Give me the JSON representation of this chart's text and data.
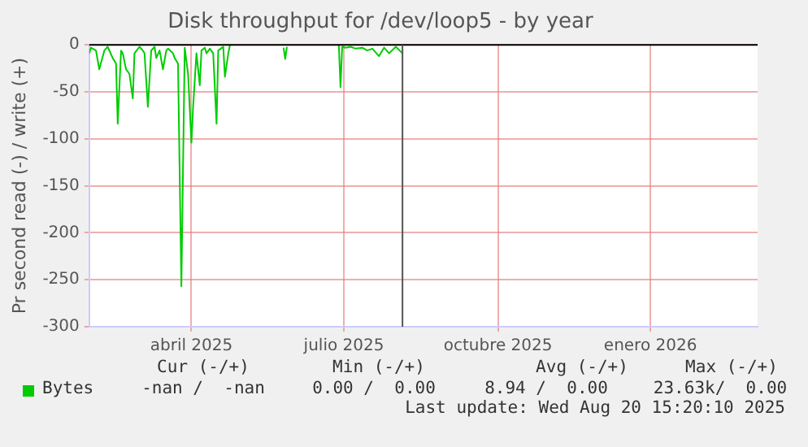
{
  "chart_data": {
    "type": "line",
    "title": "Disk throughput for /dev/loop5 - by year",
    "ylabel": "Pr second read (-) / write (+)",
    "x": [
      "2025-02-14",
      "2025-02-15",
      "2025-02-18",
      "2025-02-20",
      "2025-02-23",
      "2025-02-25",
      "2025-02-28",
      "2025-03-02",
      "2025-03-03",
      "2025-03-05",
      "2025-03-06",
      "2025-03-08",
      "2025-03-10",
      "2025-03-12",
      "2025-03-13",
      "2025-03-16",
      "2025-03-18",
      "2025-03-19",
      "2025-03-21",
      "2025-03-23",
      "2025-03-25",
      "2025-03-26",
      "2025-03-28",
      "2025-03-30",
      "2025-04-01",
      "2025-04-02",
      "2025-04-05",
      "2025-04-06",
      "2025-04-08",
      "2025-04-10",
      "2025-04-12",
      "2025-04-14",
      "2025-04-16",
      "2025-04-17",
      "2025-04-19",
      "2025-04-21",
      "2025-04-22",
      "2025-04-24",
      "2025-04-25",
      "2025-04-27",
      "2025-04-29",
      "2025-05-01",
      "2025-05-02",
      "2025-05-05",
      "2025-05-06",
      "2025-05-08",
      "2025-05-09",
      "2025-05-20",
      "2025-06-10",
      "2025-06-11",
      "2025-06-12",
      "2025-06-25",
      "2025-07-13",
      "2025-07-14",
      "2025-07-15",
      "2025-07-17",
      "2025-07-20",
      "2025-07-23",
      "2025-07-27",
      "2025-07-30",
      "2025-08-02",
      "2025-08-06",
      "2025-08-09",
      "2025-08-12",
      "2025-08-16",
      "2025-08-20"
    ],
    "series": [
      {
        "name": "Bytes",
        "color": "#00cc00",
        "values": [
          -9,
          -3,
          -6,
          -26,
          -6,
          -2,
          -14,
          -20,
          -84,
          -6,
          -9,
          -26,
          -31,
          -57,
          -9,
          -2,
          -6,
          -9,
          -66,
          -6,
          -2,
          -14,
          -6,
          -26,
          -6,
          -4,
          -9,
          -14,
          -20,
          -257,
          -3,
          -31,
          -104,
          -66,
          -9,
          -43,
          -6,
          -3,
          -9,
          -4,
          -9,
          -84,
          -6,
          -2,
          -34,
          -9,
          0,
          null,
          -3,
          -15,
          -2,
          null,
          0,
          -45,
          -2,
          -3,
          -2,
          -4,
          -3,
          -6,
          -4,
          -12,
          -3,
          -9,
          -2,
          -9
        ]
      }
    ],
    "xlim": [
      "2025-02-14",
      "2026-03-20"
    ],
    "xticks": [
      {
        "value": "2025-04-16",
        "label": "abril 2025"
      },
      {
        "value": "2025-07-16",
        "label": "julio 2025"
      },
      {
        "value": "2025-10-16",
        "label": "octubre 2025"
      },
      {
        "value": "2026-01-15",
        "label": "enero 2026"
      }
    ],
    "ylim": [
      -300,
      0
    ],
    "yticks": [
      -300,
      -250,
      -200,
      -150,
      -100,
      -50,
      0
    ],
    "grid": true,
    "legend": "bottom left",
    "marker": "none",
    "ref_lines": [
      {
        "axis": "y",
        "value": 0,
        "color": "#000000"
      },
      {
        "axis": "x",
        "value": "2025-08-20",
        "color": "#555555"
      }
    ],
    "annotations": [
      "Cur (-/+)",
      "Min (-/+)",
      "Avg (-/+)",
      "Max (-/+)",
      "-nan /  -nan",
      "0.00 /  0.00",
      "8.94 /  0.00",
      "23.63k/  0.00",
      "Last update: Wed Aug 20 15:20:10 2025"
    ]
  }
}
